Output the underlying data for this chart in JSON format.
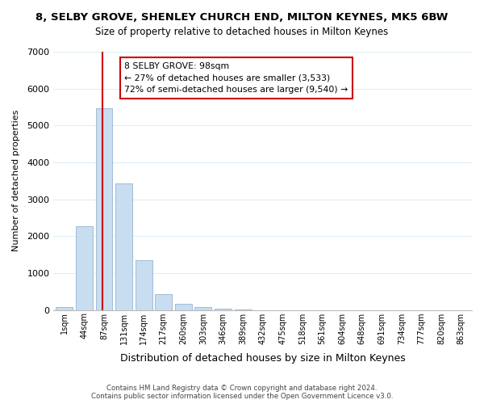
{
  "title": "8, SELBY GROVE, SHENLEY CHURCH END, MILTON KEYNES, MK5 6BW",
  "subtitle": "Size of property relative to detached houses in Milton Keynes",
  "xlabel": "Distribution of detached houses by size in Milton Keynes",
  "ylabel": "Number of detached properties",
  "bar_color": "#c8ddf0",
  "bar_edge_color": "#a0bcd8",
  "bin_labels": [
    "1sqm",
    "44sqm",
    "87sqm",
    "131sqm",
    "174sqm",
    "217sqm",
    "260sqm",
    "303sqm",
    "346sqm",
    "389sqm",
    "432sqm",
    "475sqm",
    "518sqm",
    "561sqm",
    "604sqm",
    "648sqm",
    "691sqm",
    "734sqm",
    "777sqm",
    "820sqm",
    "863sqm"
  ],
  "bar_values": [
    75,
    2270,
    5460,
    3420,
    1340,
    430,
    165,
    80,
    30,
    5,
    0,
    0,
    0,
    0,
    0,
    0,
    0,
    0,
    0,
    0,
    0
  ],
  "ylim": [
    0,
    7000
  ],
  "yticks": [
    0,
    1000,
    2000,
    3000,
    4000,
    5000,
    6000,
    7000
  ],
  "property_line_bin_index": 2,
  "annotation_title": "8 SELBY GROVE: 98sqm",
  "annotation_line1": "← 27% of detached houses are smaller (3,533)",
  "annotation_line2": "72% of semi-detached houses are larger (9,540) →",
  "footer_line1": "Contains HM Land Registry data © Crown copyright and database right 2024.",
  "footer_line2": "Contains public sector information licensed under the Open Government Licence v3.0.",
  "red_line_color": "#cc0000",
  "background_color": "#ffffff",
  "grid_color": "#ddeef8"
}
